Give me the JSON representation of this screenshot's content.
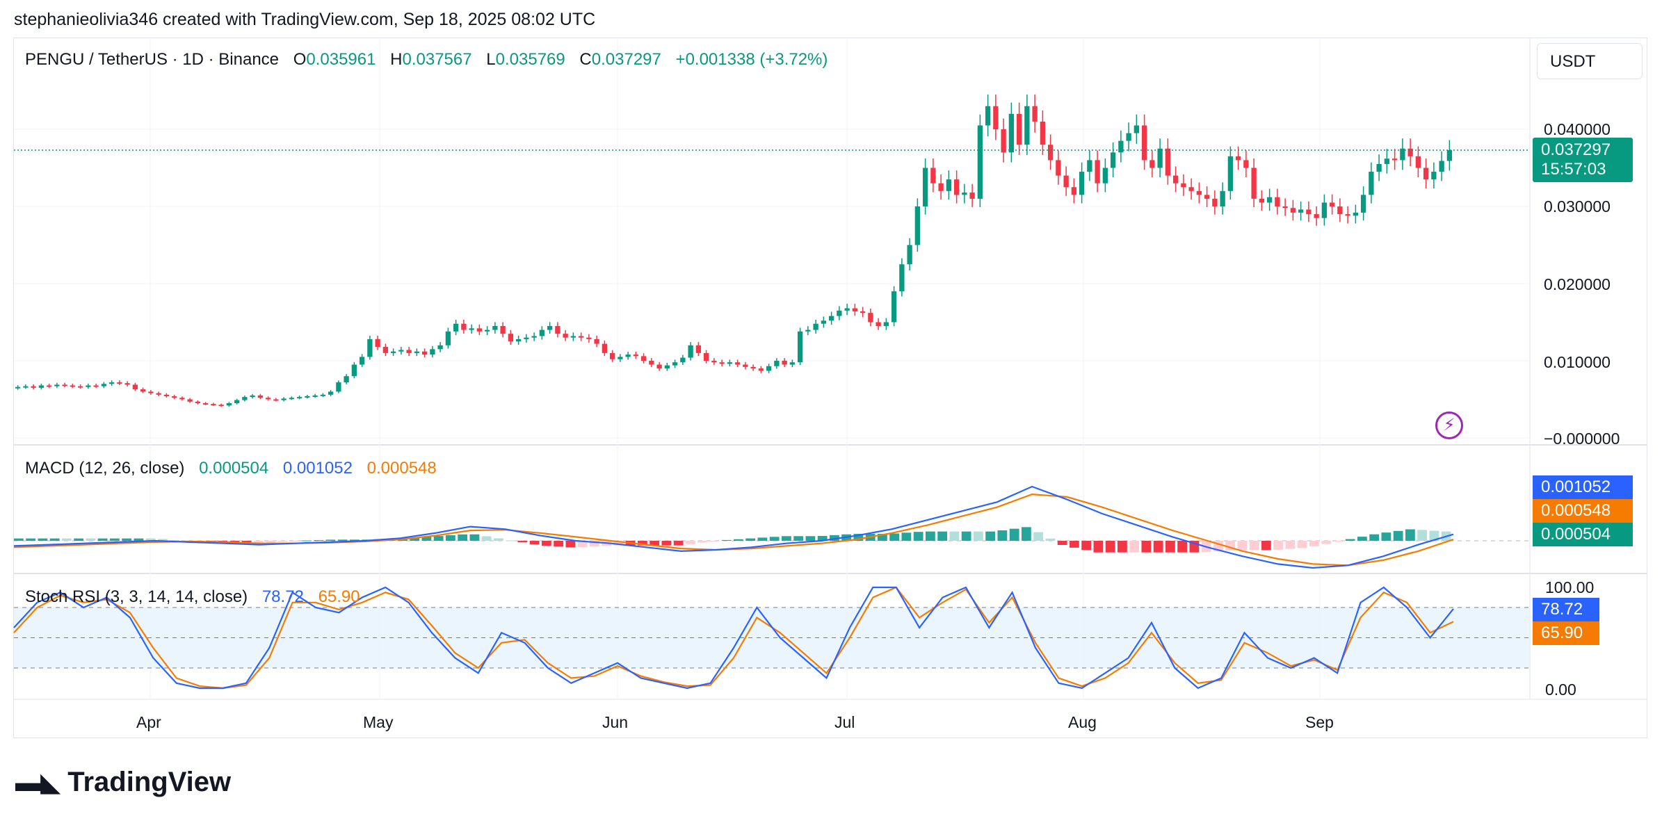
{
  "header": {
    "caption": "stephanieolivia346 created with TradingView.com, Sep 18, 2025 08:02 UTC"
  },
  "symbol_bar": {
    "symbol": "PENGU / TetherUS · 1D · Binance",
    "open_label": "O",
    "open": "0.035961",
    "high_label": "H",
    "high": "0.037567",
    "low_label": "L",
    "low": "0.035769",
    "close_label": "C",
    "close": "0.037297",
    "change": "+0.001338 (+3.72%)"
  },
  "currency_button": {
    "label": "USDT"
  },
  "price_axis": {
    "ticks": [
      "0.040000",
      "0.030000",
      "0.020000",
      "0.010000",
      "−0.000000"
    ],
    "last_price": "0.037297",
    "countdown": "15:57:03"
  },
  "macd": {
    "label": "MACD (12, 26, close)",
    "histogram": "0.000504",
    "macd_line": "0.001052",
    "signal": "0.000548"
  },
  "stoch_rsi": {
    "label": "Stoch RSI (3, 3, 14, 14, close)",
    "k": "78.72",
    "d": "65.90",
    "ticks": [
      "100.00",
      "0.00"
    ]
  },
  "time_axis": {
    "ticks": [
      "Apr",
      "May",
      "Jun",
      "Jul",
      "Aug",
      "Sep"
    ]
  },
  "brand": {
    "name": "TradingView"
  },
  "colors": {
    "up": "#089981",
    "down": "#f23645",
    "macd": "#2962ff",
    "signal": "#f57c00",
    "hist_up_strong": "#26a69a",
    "hist_up_weak": "#b2dfdb",
    "hist_down_strong": "#f23645",
    "hist_down_weak": "#ffcdd2"
  },
  "chart_data": [
    {
      "type": "candlestick",
      "title": "PENGU / TetherUS · 1D · Binance",
      "x_start": "2025-03-14",
      "x_step_days": 1,
      "y_range": [
        0,
        0.045
      ],
      "closes": [
        0.0066,
        0.0067,
        0.0065,
        0.0068,
        0.0067,
        0.0069,
        0.0068,
        0.0067,
        0.0066,
        0.0068,
        0.0067,
        0.007,
        0.0072,
        0.0071,
        0.0069,
        0.0063,
        0.006,
        0.0058,
        0.0056,
        0.0054,
        0.0052,
        0.005,
        0.0047,
        0.0045,
        0.0044,
        0.0043,
        0.0042,
        0.0045,
        0.0049,
        0.0053,
        0.0055,
        0.0052,
        0.005,
        0.0049,
        0.0051,
        0.0052,
        0.0053,
        0.0054,
        0.0055,
        0.0056,
        0.006,
        0.0072,
        0.008,
        0.0095,
        0.0105,
        0.0128,
        0.0118,
        0.011,
        0.0112,
        0.0114,
        0.011,
        0.0112,
        0.0108,
        0.0115,
        0.012,
        0.0138,
        0.0148,
        0.014,
        0.0142,
        0.0138,
        0.014,
        0.0145,
        0.0135,
        0.0125,
        0.0128,
        0.013,
        0.0132,
        0.014,
        0.0145,
        0.0135,
        0.013,
        0.0132,
        0.013,
        0.0128,
        0.0122,
        0.011,
        0.0102,
        0.0105,
        0.0108,
        0.0106,
        0.01,
        0.0095,
        0.009,
        0.0094,
        0.0098,
        0.0104,
        0.012,
        0.011,
        0.01,
        0.0098,
        0.0096,
        0.0098,
        0.0095,
        0.0092,
        0.009,
        0.0087,
        0.0093,
        0.01,
        0.0095,
        0.0098,
        0.0138,
        0.014,
        0.0148,
        0.0152,
        0.0158,
        0.0165,
        0.0168,
        0.0164,
        0.0162,
        0.015,
        0.0145,
        0.015,
        0.019,
        0.0225,
        0.025,
        0.03,
        0.035,
        0.033,
        0.032,
        0.0335,
        0.0315,
        0.0318,
        0.031,
        0.0405,
        0.043,
        0.04,
        0.037,
        0.042,
        0.038,
        0.043,
        0.041,
        0.038,
        0.036,
        0.034,
        0.0325,
        0.0315,
        0.0345,
        0.036,
        0.033,
        0.035,
        0.037,
        0.0385,
        0.0395,
        0.0405,
        0.036,
        0.035,
        0.0375,
        0.034,
        0.033,
        0.0325,
        0.032,
        0.0315,
        0.031,
        0.03,
        0.032,
        0.0365,
        0.036,
        0.035,
        0.031,
        0.0305,
        0.0312,
        0.03,
        0.0298,
        0.0292,
        0.0296,
        0.029,
        0.0285,
        0.0305,
        0.03,
        0.029,
        0.0288,
        0.0292,
        0.0315,
        0.0345,
        0.0355,
        0.0362,
        0.036,
        0.0375,
        0.0365,
        0.035,
        0.0335,
        0.0345,
        0.0359,
        0.0373
      ]
    },
    {
      "type": "line",
      "title": "MACD (12, 26, close)",
      "x_start": "2025-03-14",
      "x_step_days": 1,
      "series": [
        {
          "name": "MACD",
          "values": [
            -0.0004,
            -0.0003,
            -0.0002,
            -0.0001,
            0.0,
            -0.0001,
            -0.0002,
            -0.0003,
            -0.0002,
            -0.0001,
            0.0,
            0.0002,
            0.0006,
            0.0011,
            0.0009,
            0.0004,
            0.0,
            -0.0002,
            -0.0005,
            -0.0008,
            -0.0007,
            -0.0005,
            -0.0002,
            0.0,
            0.0004,
            0.0009,
            0.0016,
            0.0023,
            0.003,
            0.0042,
            0.0032,
            0.0021,
            0.0012,
            0.0003,
            -0.0005,
            -0.0012,
            -0.0018,
            -0.0021,
            -0.0019,
            -0.0012,
            -0.0003,
            0.0005
          ]
        },
        {
          "name": "Signal",
          "values": [
            -0.0005,
            -0.0004,
            -0.0003,
            -0.0002,
            -0.0001,
            -5e-05,
            -0.0001,
            -0.0002,
            -0.0002,
            -0.00015,
            -5e-05,
            0.0001,
            0.0004,
            0.0008,
            0.00085,
            0.0006,
            0.0003,
            0.0,
            -0.0003,
            -0.0006,
            -0.0007,
            -0.0006,
            -0.0004,
            -0.0002,
            0.0001,
            0.0006,
            0.0012,
            0.0019,
            0.0026,
            0.0036,
            0.0034,
            0.0026,
            0.0017,
            0.0008,
            0.0,
            -0.0008,
            -0.0014,
            -0.0018,
            -0.0019,
            -0.0015,
            -0.0008,
            0.0001
          ]
        }
      ]
    },
    {
      "type": "line",
      "title": "Stoch RSI (3, 3, 14, 14, close)",
      "x_start": "2025-03-14",
      "x_step_days": 1,
      "y_range": [
        0,
        100
      ],
      "series": [
        {
          "name": "K",
          "values": [
            60,
            85,
            95,
            80,
            90,
            70,
            30,
            5,
            0,
            0,
            5,
            40,
            95,
            80,
            75,
            90,
            100,
            85,
            55,
            30,
            15,
            55,
            45,
            20,
            5,
            15,
            25,
            10,
            5,
            0,
            5,
            40,
            80,
            50,
            30,
            10,
            60,
            100,
            100,
            60,
            90,
            100,
            60,
            95,
            40,
            5,
            0,
            15,
            30,
            65,
            20,
            0,
            10,
            55,
            30,
            20,
            30,
            15,
            85,
            100,
            80,
            50,
            78.72
          ]
        },
        {
          "name": "D",
          "values": [
            55,
            80,
            92,
            85,
            88,
            75,
            40,
            10,
            2,
            0,
            3,
            30,
            85,
            85,
            78,
            85,
            95,
            88,
            62,
            35,
            20,
            45,
            48,
            25,
            10,
            12,
            22,
            12,
            6,
            2,
            3,
            30,
            70,
            55,
            35,
            15,
            50,
            90,
            100,
            70,
            85,
            98,
            65,
            90,
            45,
            10,
            2,
            10,
            25,
            55,
            25,
            5,
            8,
            45,
            35,
            22,
            28,
            18,
            70,
            95,
            85,
            55,
            65.9
          ]
        }
      ]
    }
  ]
}
